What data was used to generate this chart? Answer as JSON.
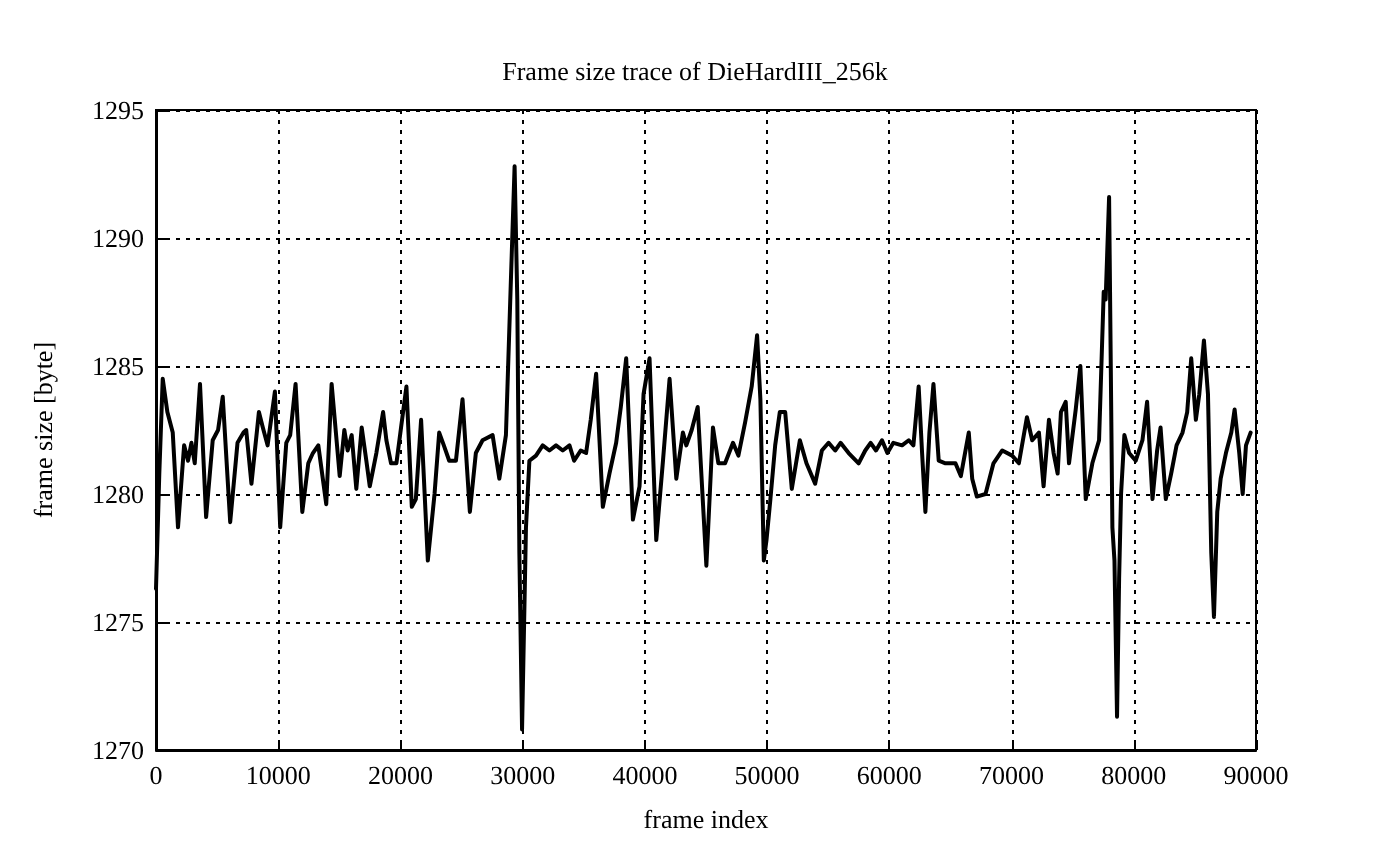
{
  "chart_data": {
    "type": "line",
    "title": "Frame size trace of DieHardIII_256k",
    "xlabel": "frame index",
    "ylabel": "frame size [byte]",
    "series": [
      {
        "color": "#000000",
        "x": [
          0,
          270,
          550,
          930,
          1370,
          1800,
          2300,
          2620,
          2900,
          3170,
          3600,
          4100,
          4640,
          5080,
          5460,
          6070,
          6670,
          7160,
          7380,
          7810,
          8420,
          8740,
          9130,
          9730,
          10160,
          10660,
          10980,
          11420,
          11970,
          12460,
          12840,
          13280,
          13930,
          14370,
          15030,
          15410,
          15680,
          16010,
          16390,
          16830,
          17210,
          17490,
          18030,
          18580,
          18850,
          19230,
          19670,
          20050,
          20490,
          20930,
          21260,
          21690,
          22240,
          22790,
          23170,
          23550,
          23990,
          24540,
          25080,
          25680,
          26170,
          26720,
          27540,
          28090,
          28630,
          29020,
          29340,
          29560,
          29730,
          29950,
          30270,
          30550,
          31090,
          31640,
          32190,
          32730,
          33280,
          33830,
          34210,
          34750,
          35190,
          35570,
          36010,
          36560,
          37100,
          37650,
          38030,
          38470,
          39020,
          39560,
          39890,
          40380,
          40930,
          41480,
          42020,
          42570,
          43110,
          43390,
          43830,
          44320,
          45030,
          45570,
          46010,
          46560,
          47210,
          47650,
          48200,
          48740,
          49180,
          49450,
          49730,
          49950,
          50270,
          50660,
          51040,
          51480,
          52020,
          52680,
          53220,
          53930,
          54480,
          55030,
          55570,
          56010,
          56670,
          57490,
          58030,
          58470,
          58910,
          59400,
          59840,
          60330,
          61040,
          61590,
          61970,
          62400,
          62680,
          62950,
          63280,
          63610,
          64040,
          64590,
          65410,
          65850,
          66500,
          66780,
          67160,
          67870,
          68520,
          69240,
          70050,
          70600,
          71260,
          71690,
          72240,
          72620,
          73060,
          73440,
          73770,
          74040,
          74430,
          74700,
          75250,
          75630,
          76070,
          76610,
          77160,
          77540,
          77700,
          77980,
          78250,
          78420,
          78630,
          78800,
          78960,
          79230,
          79620,
          80160,
          80710,
          81090,
          81530,
          81910,
          82190,
          82620,
          83060,
          83500,
          83990,
          84370,
          84700,
          85080,
          85360,
          85740,
          86070,
          86340,
          86560,
          86830,
          87110,
          87540,
          87980,
          88250,
          88630,
          88910,
          89180,
          89560
        ],
        "values": [
          1276.3,
          1280.8,
          1284.5,
          1283.2,
          1282.4,
          1278.7,
          1281.9,
          1281.3,
          1282.0,
          1281.2,
          1284.3,
          1279.1,
          1282.1,
          1282.5,
          1283.8,
          1278.9,
          1282.0,
          1282.4,
          1282.5,
          1280.4,
          1283.2,
          1282.6,
          1281.9,
          1284.0,
          1278.7,
          1282.0,
          1282.3,
          1284.3,
          1279.3,
          1281.2,
          1281.6,
          1281.9,
          1279.6,
          1284.3,
          1280.7,
          1282.5,
          1281.7,
          1282.3,
          1280.2,
          1282.6,
          1281.3,
          1280.3,
          1281.6,
          1283.2,
          1282.1,
          1281.2,
          1281.2,
          1282.6,
          1284.2,
          1279.5,
          1279.8,
          1282.9,
          1277.4,
          1280.0,
          1282.4,
          1281.9,
          1281.3,
          1281.3,
          1283.7,
          1279.3,
          1281.6,
          1282.1,
          1282.3,
          1280.6,
          1282.3,
          1288.1,
          1292.8,
          1287.6,
          1277.7,
          1270.8,
          1278.7,
          1281.3,
          1281.5,
          1281.9,
          1281.7,
          1281.9,
          1281.7,
          1281.9,
          1281.3,
          1281.7,
          1281.6,
          1282.9,
          1284.7,
          1279.5,
          1280.8,
          1282.0,
          1283.4,
          1285.3,
          1279.0,
          1280.3,
          1283.9,
          1285.3,
          1278.2,
          1281.3,
          1284.5,
          1280.6,
          1282.4,
          1281.9,
          1282.5,
          1283.4,
          1277.2,
          1282.6,
          1281.2,
          1281.2,
          1282.0,
          1281.5,
          1282.8,
          1284.2,
          1286.2,
          1283.7,
          1277.4,
          1278.2,
          1279.8,
          1281.9,
          1283.2,
          1283.2,
          1280.2,
          1282.1,
          1281.2,
          1280.4,
          1281.7,
          1282.0,
          1281.7,
          1282.0,
          1281.6,
          1281.2,
          1281.7,
          1282.0,
          1281.7,
          1282.1,
          1281.6,
          1282.0,
          1281.9,
          1282.1,
          1281.9,
          1284.2,
          1281.6,
          1279.3,
          1282.4,
          1284.3,
          1281.3,
          1281.2,
          1281.2,
          1280.7,
          1282.4,
          1280.6,
          1279.9,
          1280.0,
          1281.2,
          1281.7,
          1281.5,
          1281.2,
          1283.0,
          1282.1,
          1282.4,
          1280.3,
          1282.9,
          1281.6,
          1280.8,
          1283.2,
          1283.6,
          1281.2,
          1283.3,
          1285.0,
          1279.8,
          1281.2,
          1282.1,
          1287.9,
          1287.6,
          1291.6,
          1278.7,
          1277.4,
          1271.3,
          1276.7,
          1280.0,
          1282.3,
          1281.6,
          1281.3,
          1282.1,
          1283.6,
          1279.8,
          1281.7,
          1282.6,
          1279.8,
          1280.8,
          1281.9,
          1282.4,
          1283.2,
          1285.3,
          1282.9,
          1283.9,
          1286.0,
          1283.9,
          1277.7,
          1275.2,
          1279.3,
          1280.6,
          1281.6,
          1282.4,
          1283.3,
          1281.6,
          1280.0,
          1281.9,
          1282.4
        ]
      }
    ],
    "xlim": [
      0,
      90000
    ],
    "xticks": [
      0,
      10000,
      20000,
      30000,
      40000,
      50000,
      60000,
      70000,
      80000,
      90000
    ],
    "ylim": [
      1270,
      1295
    ],
    "yticks": [
      1270,
      1275,
      1280,
      1285,
      1290,
      1295
    ],
    "grid": true,
    "marker": "none",
    "line_style": "solid"
  }
}
